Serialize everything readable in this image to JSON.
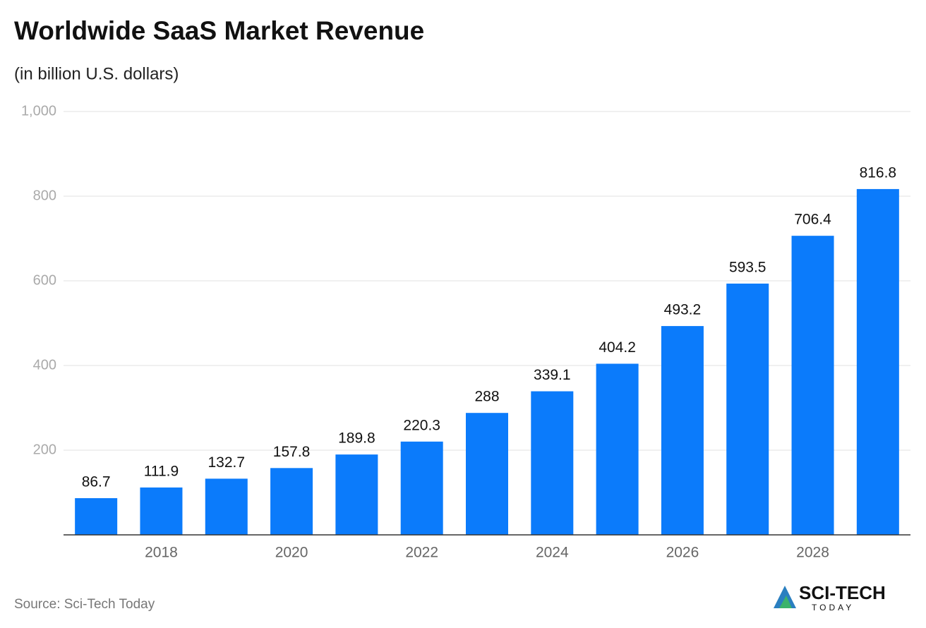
{
  "chart_data": {
    "type": "bar",
    "title": "Worldwide SaaS Market Revenue",
    "subtitle": "(in billion U.S. dollars)",
    "source": "Source: Sci-Tech Today",
    "logo": {
      "line1": "SCI-TECH",
      "line2": "TODAY"
    },
    "categories": [
      null,
      "2018",
      null,
      "2020",
      null,
      "2022",
      null,
      "2024",
      null,
      "2026",
      null,
      "2028",
      null
    ],
    "values": [
      86.7,
      111.9,
      132.7,
      157.8,
      189.8,
      220.3,
      288,
      339.1,
      404.2,
      493.2,
      593.5,
      706.4,
      816.8
    ],
    "color": "#0b7bfb",
    "ylim": [
      0,
      1000
    ],
    "yticks": [
      200,
      400,
      600,
      800,
      {
        "value": 1000,
        "label": "1,000"
      }
    ],
    "grid": true
  }
}
